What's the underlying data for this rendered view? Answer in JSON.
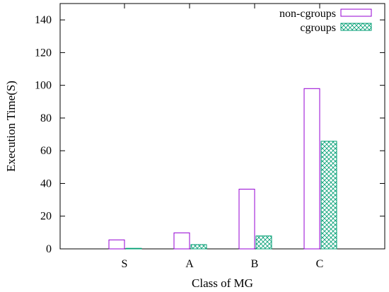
{
  "chart_data": {
    "type": "bar",
    "title": "",
    "xlabel": "Class of MG",
    "ylabel": "Execution Time(S)",
    "categories": [
      "S",
      "A",
      "B",
      "C"
    ],
    "series": [
      {
        "name": "non-cgroups",
        "values": [
          5.5,
          9.8,
          36.5,
          98.0
        ],
        "color": "#9400d3",
        "fill": "none"
      },
      {
        "name": "cgroups",
        "values": [
          0.3,
          2.6,
          7.9,
          65.8
        ],
        "color": "#009e73",
        "fill": "crosshatch"
      }
    ],
    "ylim": [
      0,
      150
    ],
    "yticks": [
      0,
      20,
      40,
      60,
      80,
      100,
      120,
      140
    ],
    "grid": false,
    "legend": "top-right"
  }
}
